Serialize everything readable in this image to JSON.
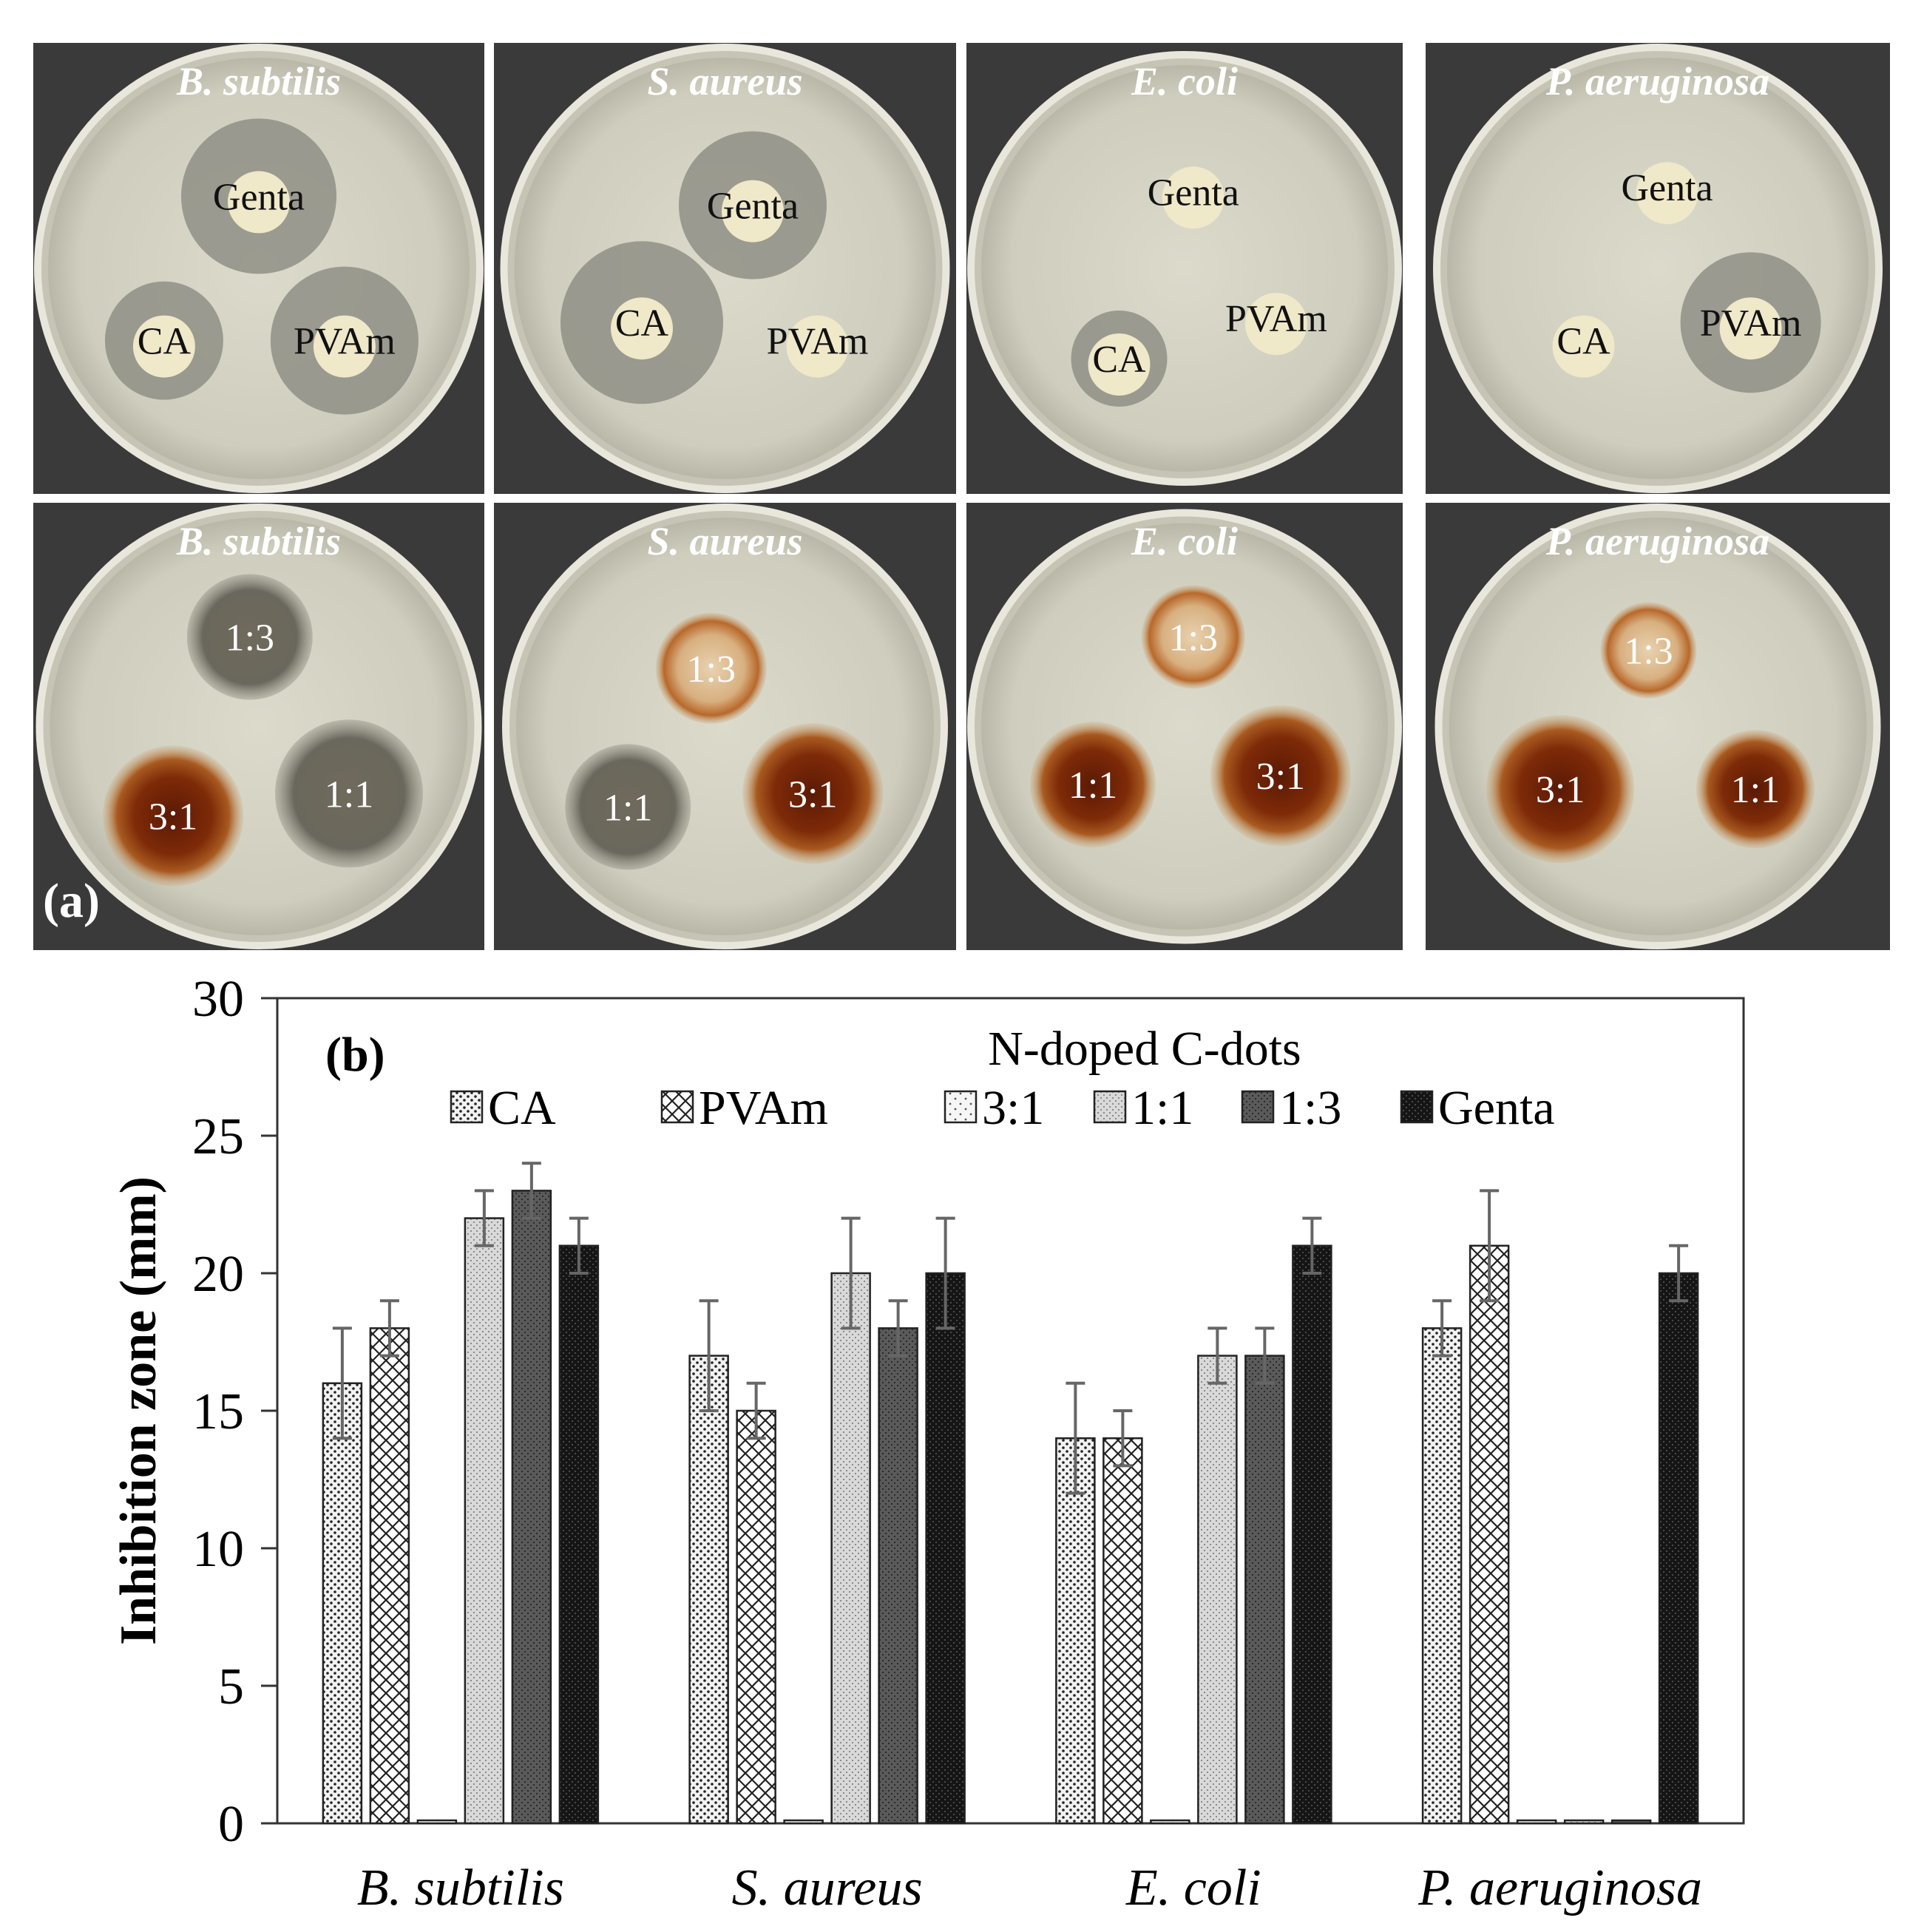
{
  "panel_a_label": "(a)",
  "plates_top": [
    {
      "organism": "B. subtilis",
      "discs": [
        "Genta",
        "CA",
        "PVAm"
      ]
    },
    {
      "organism": "S. aureus",
      "discs": [
        "Genta",
        "CA",
        "PVAm"
      ]
    },
    {
      "organism": "E. coli",
      "discs": [
        "Genta",
        "CA",
        "PVAm"
      ]
    },
    {
      "organism": "P. aeruginosa",
      "discs": [
        "Genta",
        "CA",
        "PVAm"
      ]
    }
  ],
  "plates_bottom": [
    {
      "organism": "B. subtilis",
      "discs": [
        "1:3",
        "3:1",
        "1:1"
      ]
    },
    {
      "organism": "S. aureus",
      "discs": [
        "1:3",
        "1:1",
        "3:1"
      ]
    },
    {
      "organism": "E. coli",
      "discs": [
        "1:3",
        "1:1",
        "3:1"
      ]
    },
    {
      "organism": "P. aeruginosa",
      "discs": [
        "1:3",
        "3:1",
        "1:1"
      ]
    }
  ],
  "colors": {
    "plate_bg": "#3a3a3a",
    "agar": "#d8d6c8",
    "zone": "#8f8f86",
    "brown": "#7a3a10",
    "bar_fill": "#e8e8e8"
  },
  "chart_data": {
    "type": "bar",
    "panel_label": "(b)",
    "note": "N-doped C-dots",
    "ylabel": "Inhibition zone (mm)",
    "ylim": [
      0,
      30
    ],
    "yticks": [
      "0",
      "5",
      "10",
      "15",
      "20",
      "25",
      "30"
    ],
    "categories": [
      "B. subtilis",
      "S. aureus",
      "E. coli",
      "P. aeruginosa"
    ],
    "series": [
      {
        "name": "CA",
        "values": [
          16,
          17,
          14,
          18
        ],
        "errors": [
          2,
          2,
          2,
          1
        ],
        "pattern": "dots"
      },
      {
        "name": "PVAm",
        "values": [
          18,
          15,
          14,
          21
        ],
        "errors": [
          1,
          1,
          1,
          2
        ],
        "pattern": "cross"
      },
      {
        "name": "3:1",
        "values": [
          0,
          0,
          0,
          0
        ],
        "errors": [
          0,
          0,
          0,
          0
        ],
        "pattern": "sparse"
      },
      {
        "name": "1:1",
        "values": [
          22,
          20,
          17,
          0
        ],
        "errors": [
          1,
          2,
          1,
          0
        ],
        "pattern": "grain"
      },
      {
        "name": "1:3",
        "values": [
          23,
          18,
          17,
          0
        ],
        "errors": [
          1,
          1,
          1,
          0
        ],
        "pattern": "dark"
      },
      {
        "name": "Genta",
        "values": [
          21,
          20,
          21,
          20
        ],
        "errors": [
          1,
          2,
          1,
          1
        ],
        "pattern": "darkest"
      }
    ],
    "legend": [
      "CA",
      "PVAm",
      "3:1",
      "1:1",
      "1:3",
      "Genta"
    ],
    "legend_position": "top",
    "grid": false
  }
}
